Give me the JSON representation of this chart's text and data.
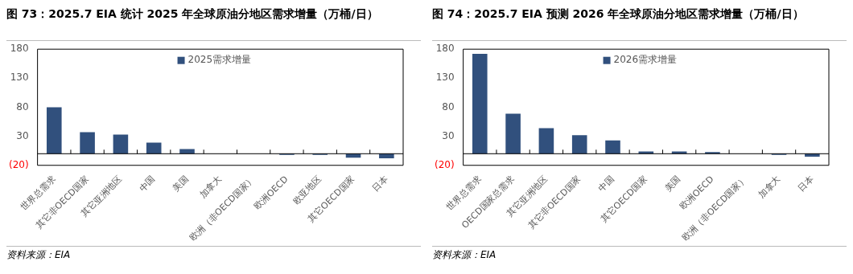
{
  "chart_data": [
    {
      "type": "bar",
      "title": "图 73：2025.7 EIA 统计 2025 年全球原油分地区需求增量（万桶/日）",
      "categories": [
        "世界总需求",
        "其它非OECD国家",
        "其它亚洲地区",
        "中国",
        "美国",
        "加拿大",
        "欧洲（非OECD国家）",
        "欧洲OECD",
        "欧亚地区",
        "其它OECD国家",
        "日本"
      ],
      "series": [
        {
          "name": "2025需求增量",
          "color": "#31507d",
          "values": [
            80,
            37,
            33,
            19,
            8,
            0,
            0,
            -2,
            -2,
            -7,
            -8
          ]
        }
      ],
      "ylim": [
        -20,
        180
      ],
      "yticks": [
        {
          "value": -20,
          "label": "(20)"
        },
        30,
        80,
        130,
        180
      ],
      "legend": "top",
      "annotations": [
        "资料来源：EIA"
      ]
    },
    {
      "type": "bar",
      "title": "图 74：2025.7 EIA 预测 2026 年全球原油分地区需求增量（万桶/日）",
      "categories": [
        "世界总需求",
        "OECD国家总需求",
        "其它亚洲地区",
        "其它非OECD国家",
        "中国",
        "其它OECD国家",
        "美国",
        "欧洲OECD",
        "欧洲（非OECD国家）",
        "加拿大",
        "日本"
      ],
      "series": [
        {
          "name": "2026需求增量",
          "color": "#31507d",
          "values": [
            172,
            69,
            44,
            32,
            23,
            4,
            4,
            3,
            0,
            -2,
            -5
          ]
        }
      ],
      "ylim": [
        -20,
        180
      ],
      "yticks": [
        {
          "value": -20,
          "label": "(20)"
        },
        30,
        80,
        130,
        180
      ],
      "legend": "top",
      "annotations": [
        "资料来源：EIA"
      ]
    }
  ]
}
